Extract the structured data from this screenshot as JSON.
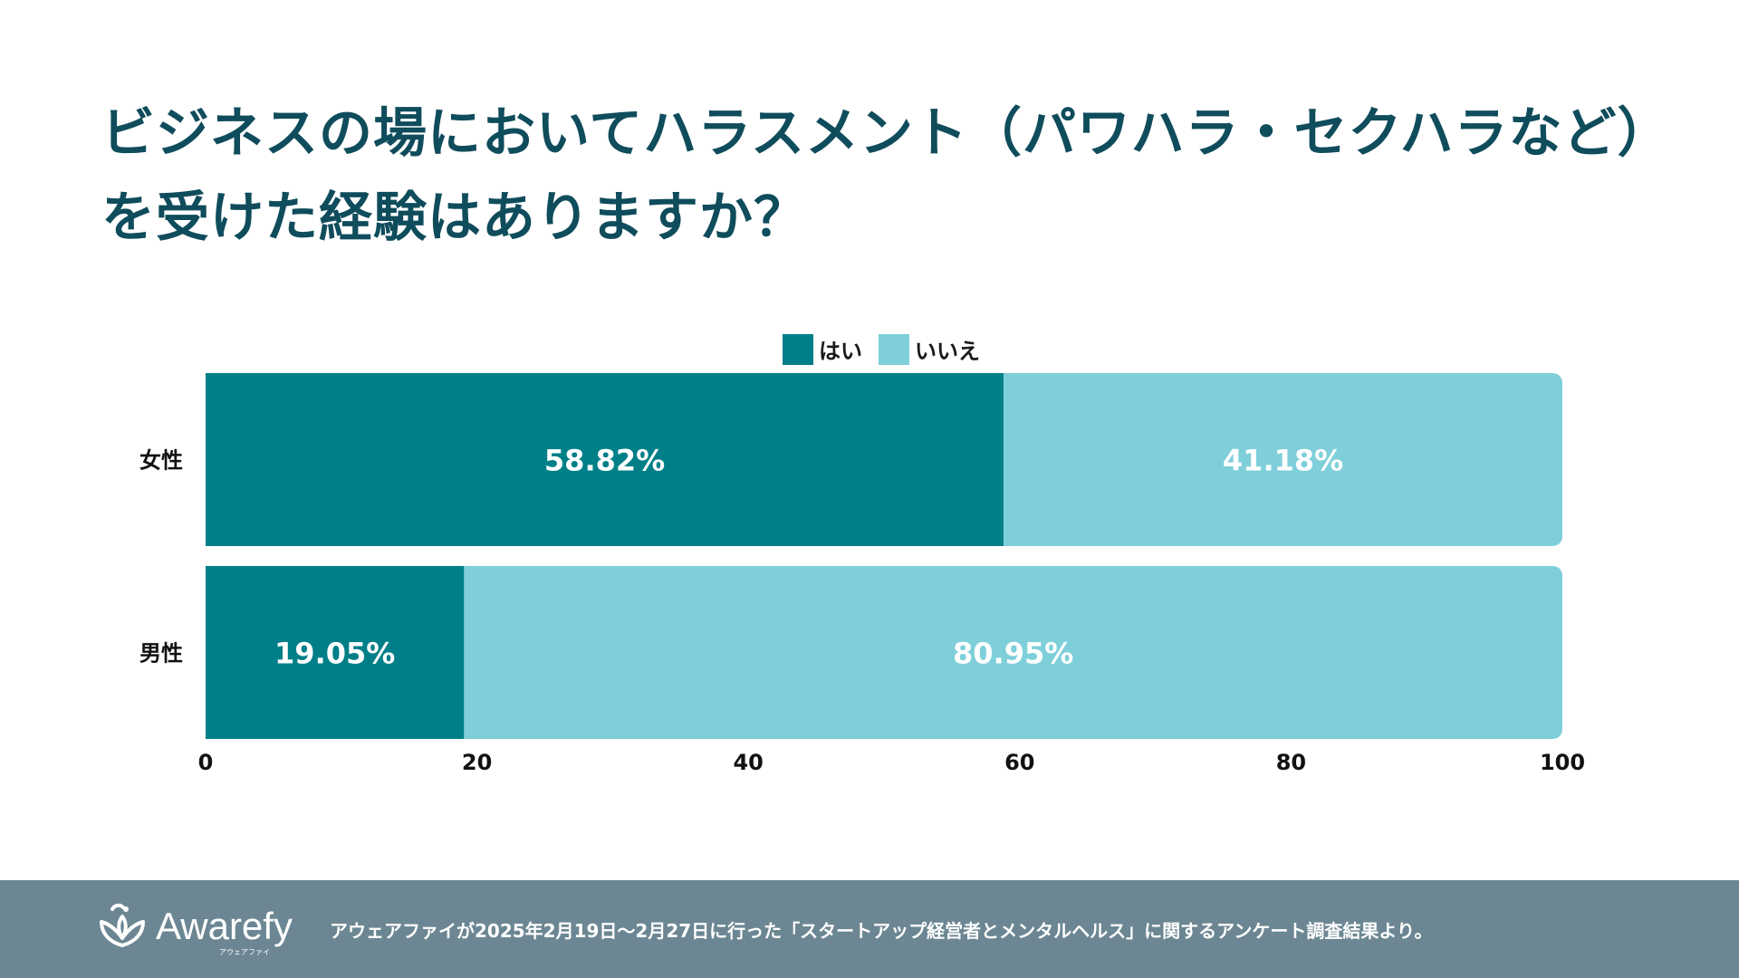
{
  "title_lines": [
    "ビジネスの場においてハラスメント（パワハラ・セクハラなど）",
    "を受けた経験はありますか？"
  ],
  "colors": {
    "title": "#0f4c5c",
    "yes": "#007f88",
    "no": "#7ecfd9",
    "footer_bg": "#6c8793",
    "label_text": "#ffffff",
    "axis_text": "#111111"
  },
  "chart_data": {
    "type": "bar",
    "orientation": "horizontal",
    "stacked": true,
    "categories": [
      "女性",
      "男性"
    ],
    "series": [
      {
        "name": "はい",
        "values": [
          58.82,
          19.05
        ],
        "labels": [
          "58.82%",
          "19.05%"
        ]
      },
      {
        "name": "いいえ",
        "values": [
          41.18,
          80.95
        ],
        "labels": [
          "41.18%",
          "80.95%"
        ]
      }
    ],
    "xlim": [
      0,
      100
    ],
    "xticks": [
      "0",
      "20",
      "40",
      "60",
      "80",
      "100"
    ],
    "legend_position": "top-center",
    "grid": false
  },
  "footer": {
    "logo_text": "Awarefy",
    "logo_subtext": "アウェアファイ",
    "source_text": "アウェアファイが2025年2月19日〜2月27日に行った「スタートアップ経営者とメンタルヘルス」に関するアンケート調査結果より。"
  }
}
